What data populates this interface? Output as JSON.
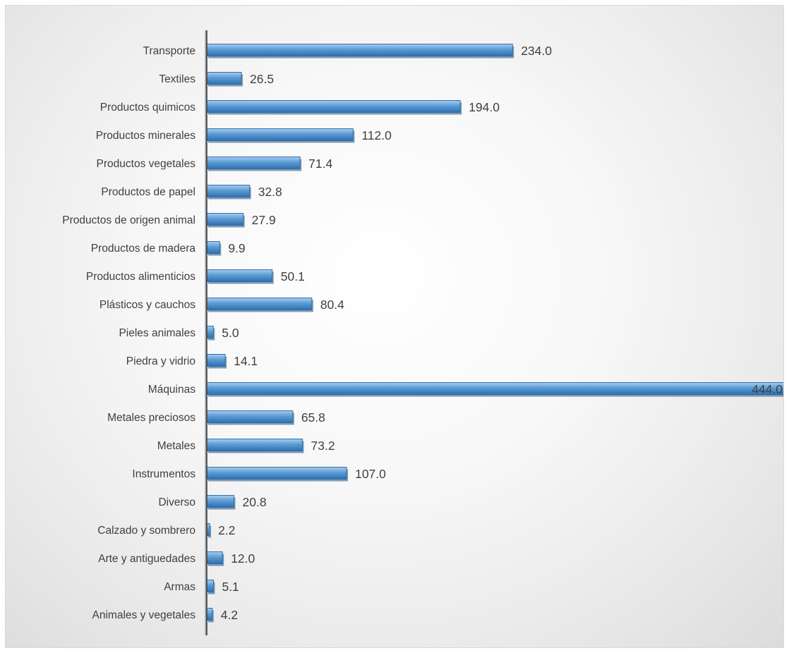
{
  "chart_data": {
    "type": "bar",
    "orientation": "horizontal",
    "categories": [
      "Transporte",
      "Textiles",
      "Productos quimicos",
      "Productos minerales",
      "Productos vegetales",
      "Productos de papel",
      "Productos de origen animal",
      "Productos de madera",
      "Productos alimenticios",
      "Plásticos y cauchos",
      "Pieles animales",
      "Piedra y vidrio",
      "Máquinas",
      "Metales preciosos",
      "Metales",
      "Instrumentos",
      "Diverso",
      "Calzado y sombrero",
      "Arte y antiguedades",
      "Armas",
      "Animales y vegetales"
    ],
    "values": [
      234.0,
      26.5,
      194.0,
      112.0,
      71.4,
      32.8,
      27.9,
      9.9,
      50.1,
      80.4,
      5.0,
      14.1,
      444.0,
      65.8,
      73.2,
      107.0,
      20.8,
      2.2,
      12.0,
      5.1,
      4.2
    ],
    "value_labels": [
      "234.0",
      "26.5",
      "194.0",
      "112.0",
      "71.4",
      "32.8",
      "27.9",
      "9.9",
      "50.1",
      "80.4",
      "5.0",
      "14.1",
      "444.0",
      "65.8",
      "73.2",
      "107.0",
      "20.8",
      "2.2",
      "12.0",
      "5.1",
      "4.2"
    ],
    "title": "",
    "xlabel": "",
    "ylabel": "",
    "xlim": [
      0,
      444
    ],
    "grid": false,
    "legend": "none",
    "bar_color": "#5b9bd5",
    "bar_color_dark": "#2e6fad",
    "bar_color_light": "#a9cdee"
  }
}
